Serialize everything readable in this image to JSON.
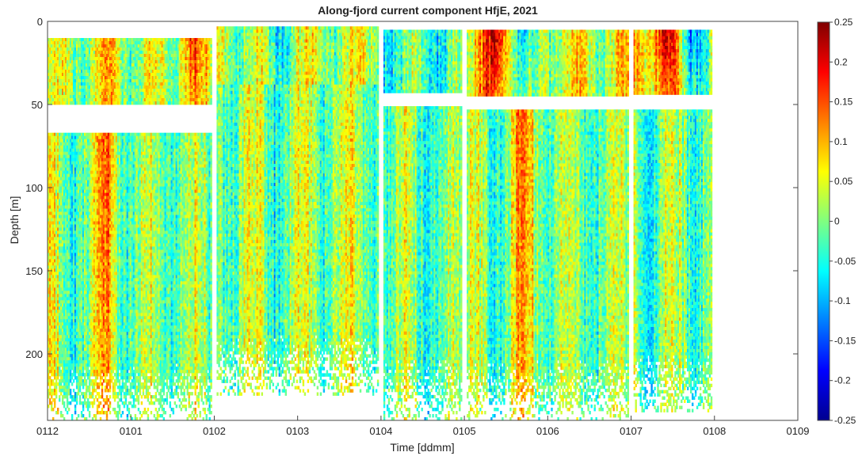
{
  "chart_data": {
    "type": "heatmap",
    "title": "Along-fjord current component HfjE, 2021",
    "xlabel": "Time [ddmm]",
    "ylabel": "Depth [m]",
    "x_ticks": [
      "0112",
      "0101",
      "0102",
      "0103",
      "0104",
      "0105",
      "0106",
      "0107",
      "0108",
      "0109"
    ],
    "y_ticks": [
      0,
      50,
      100,
      150,
      200
    ],
    "ylim": [
      0,
      240
    ],
    "y_reversed": true,
    "grid": false,
    "colorbar": {
      "colormap": "jet",
      "range": [
        -0.25,
        0.25
      ],
      "ticks": [
        "0.25",
        "0.2",
        "0.15",
        "0.1",
        "0.05",
        "0",
        "-0.05",
        "-0.1",
        "-0.15",
        "-0.2",
        "-0.25"
      ]
    },
    "segments": [
      {
        "start": "0112",
        "end": "0102",
        "instrument": "upper",
        "depth_range": [
          10,
          50
        ],
        "mean": 0.02,
        "features": [
          {
            "t": "0101",
            "v": -0.12
          },
          {
            "t": "0101",
            "v": 0.18
          },
          {
            "t": "0102",
            "v": 0.14
          }
        ]
      },
      {
        "start": "0112",
        "end": "0102",
        "instrument": "lower",
        "depth_range": [
          67,
          240
        ],
        "mean": 0.0,
        "features": [
          {
            "t": "0101",
            "v": 0.12
          }
        ]
      },
      {
        "start": "0102",
        "end": "0104",
        "instrument": "upper",
        "depth_range": [
          3,
          38
        ],
        "mean": 0.03,
        "features": [
          {
            "t": "0103",
            "v": -0.1
          }
        ]
      },
      {
        "start": "0102",
        "end": "0104",
        "instrument": "lower",
        "depth_range": [
          38,
          225
        ],
        "mean": 0.01,
        "features": [
          {
            "t": "0103",
            "v": 0.07
          },
          {
            "t": "0103",
            "v": -0.1
          }
        ]
      },
      {
        "start": "0104",
        "end": "0105",
        "instrument": "upper",
        "depth_range": [
          5,
          43
        ],
        "mean": -0.03,
        "features": []
      },
      {
        "start": "0104",
        "end": "0105",
        "instrument": "lower",
        "depth_range": [
          51,
          240
        ],
        "mean": -0.01,
        "features": []
      },
      {
        "start": "0105",
        "end": "0107",
        "instrument": "upper",
        "depth_range": [
          5,
          45
        ],
        "mean": 0.04,
        "features": [
          {
            "t": "0105",
            "v": 0.22
          },
          {
            "t": "0106",
            "v": -0.17
          }
        ]
      },
      {
        "start": "0105",
        "end": "0107",
        "instrument": "lower",
        "depth_range": [
          53,
          240
        ],
        "mean": 0.0,
        "features": [
          {
            "t": "0106",
            "v": 0.12
          }
        ]
      },
      {
        "start": "0107",
        "end": "0108",
        "instrument": "upper",
        "depth_range": [
          5,
          44
        ],
        "mean": 0.05,
        "features": [
          {
            "t": "0107",
            "v": 0.22
          },
          {
            "t": "0108",
            "v": -0.18
          }
        ]
      },
      {
        "start": "0107",
        "end": "0108",
        "instrument": "lower",
        "depth_range": [
          53,
          235
        ],
        "mean": 0.0,
        "features": []
      }
    ]
  }
}
